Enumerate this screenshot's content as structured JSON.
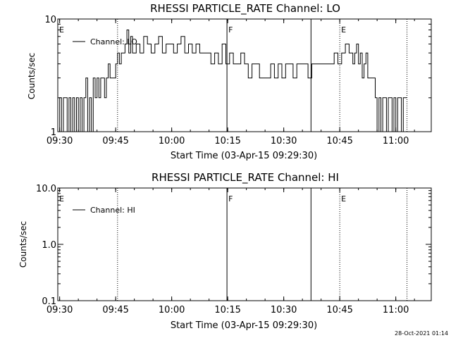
{
  "footer_timestamp": "28-Oct-2021 01:14",
  "chart_data": [
    {
      "type": "line",
      "title": "RHESSI PARTICLE_RATE Channel: LO",
      "xlabel": "Start Time (03-Apr-15 09:29:30)",
      "ylabel": "Counts/sec",
      "yscale": "log",
      "ylim": [
        1,
        10
      ],
      "ytick_values": [
        1,
        10
      ],
      "ytick_labels": [
        "1",
        "10"
      ],
      "xlim_minutes": [
        0,
        100
      ],
      "xtick_minutes": [
        0.5,
        15.5,
        30.5,
        45.5,
        60.5,
        75.5,
        90.5
      ],
      "xtick_labels": [
        "09:30",
        "09:45",
        "10:00",
        "10:15",
        "10:30",
        "10:45",
        "11:00"
      ],
      "legend": "top-left",
      "series": [
        {
          "name": "Channel: LO",
          "x_minutes": [
            0.0,
            0.5,
            1.0,
            1.5,
            2.0,
            2.5,
            3.0,
            3.5,
            4.0,
            4.5,
            5.0,
            5.5,
            6.0,
            6.5,
            7.0,
            7.5,
            8.0,
            8.5,
            9.0,
            9.5,
            10.0,
            10.5,
            11.0,
            11.5,
            12.0,
            12.5,
            13.0,
            13.5,
            14.0,
            14.5,
            15.0,
            15.5,
            16.0,
            16.5,
            17.0,
            17.5,
            18.0,
            18.5,
            19.0,
            19.5,
            20.0,
            21.0,
            22.0,
            23.0,
            24.0,
            25.0,
            26.0,
            27.0,
            28.0,
            29.0,
            30.0,
            31.0,
            32.0,
            33.0,
            34.0,
            35.0,
            36.0,
            37.0,
            38.0,
            39.0,
            40.0,
            41.0,
            42.0,
            43.0,
            44.0,
            45.0,
            46.0,
            47.0,
            48.0,
            49.0,
            50.0,
            51.0,
            52.0,
            53.0,
            54.0,
            55.0,
            56.0,
            57.0,
            58.0,
            59.0,
            60.0,
            61.0,
            62.0,
            63.0,
            64.0,
            65.0,
            66.0,
            67.0,
            68.0,
            69.0,
            70.0,
            71.0,
            72.0,
            73.0,
            74.0,
            75.0,
            76.0,
            77.0,
            78.0,
            79.0,
            79.5,
            80.0,
            80.5,
            81.0,
            81.5,
            82.0,
            82.5,
            83.0,
            83.5,
            84.0,
            84.5,
            85.0,
            85.5,
            86.0,
            86.5,
            87.0,
            87.5,
            88.0,
            88.5,
            89.0,
            89.5,
            90.0,
            90.5,
            91.0,
            91.5,
            92.0,
            92.5,
            93.0
          ],
          "y": [
            1,
            2,
            1,
            2,
            2,
            1,
            2,
            1,
            2,
            1,
            2,
            1,
            2,
            1,
            2,
            3,
            1,
            2,
            1,
            3,
            2,
            3,
            2,
            3,
            3,
            2,
            3,
            4,
            3,
            3,
            3,
            4,
            5,
            4,
            5,
            5,
            6,
            8,
            5,
            7,
            5,
            6,
            5,
            7,
            6,
            5,
            6,
            7,
            5,
            6,
            6,
            5,
            6,
            7,
            5,
            6,
            5,
            6,
            5,
            5,
            5,
            4,
            5,
            4,
            6,
            4,
            5,
            4,
            4,
            5,
            4,
            3,
            4,
            4,
            3,
            3,
            3,
            4,
            3,
            4,
            3,
            4,
            4,
            3,
            4,
            4,
            4,
            3,
            4,
            4,
            4,
            4,
            4,
            4,
            5,
            4,
            5,
            6,
            5,
            4,
            5,
            6,
            4,
            5,
            3,
            4,
            5,
            3,
            3,
            3,
            3,
            2,
            1,
            2,
            1,
            2,
            2,
            1,
            2,
            2,
            1,
            2,
            1,
            2,
            2,
            1,
            2,
            2
          ],
          "y_round_note": ""
        }
      ],
      "annotations": [
        {
          "text": "E",
          "minute": 0
        },
        {
          "text": "F",
          "minute": 45.3
        },
        {
          "text": "E",
          "minute": 75.5
        }
      ],
      "dotted_lines_minutes": [
        16.0,
        75.5,
        93.5
      ],
      "solid_lines_minutes": [
        45.3,
        67.8
      ]
    },
    {
      "type": "line",
      "title": "RHESSI PARTICLE_RATE Channel: HI",
      "xlabel": "Start Time (03-Apr-15 09:29:30)",
      "ylabel": "Counts/sec",
      "yscale": "log",
      "ylim": [
        0.1,
        10
      ],
      "ytick_values": [
        0.1,
        1.0,
        10.0
      ],
      "ytick_labels": [
        "0.1",
        "1.0",
        "10.0"
      ],
      "xlim_minutes": [
        0,
        100
      ],
      "xtick_minutes": [
        0.5,
        15.5,
        30.5,
        45.5,
        60.5,
        75.5,
        90.5
      ],
      "xtick_labels": [
        "09:30",
        "09:45",
        "10:00",
        "10:15",
        "10:30",
        "10:45",
        "11:00"
      ],
      "legend": "top-left",
      "series": [
        {
          "name": "Channel: HI",
          "x_minutes": [],
          "y": []
        }
      ],
      "annotations": [
        {
          "text": "E",
          "minute": 0
        },
        {
          "text": "F",
          "minute": 45.3
        },
        {
          "text": "E",
          "minute": 75.5
        }
      ],
      "dotted_lines_minutes": [
        16.0,
        75.5,
        93.5
      ],
      "solid_lines_minutes": [
        45.3,
        67.8
      ]
    }
  ]
}
